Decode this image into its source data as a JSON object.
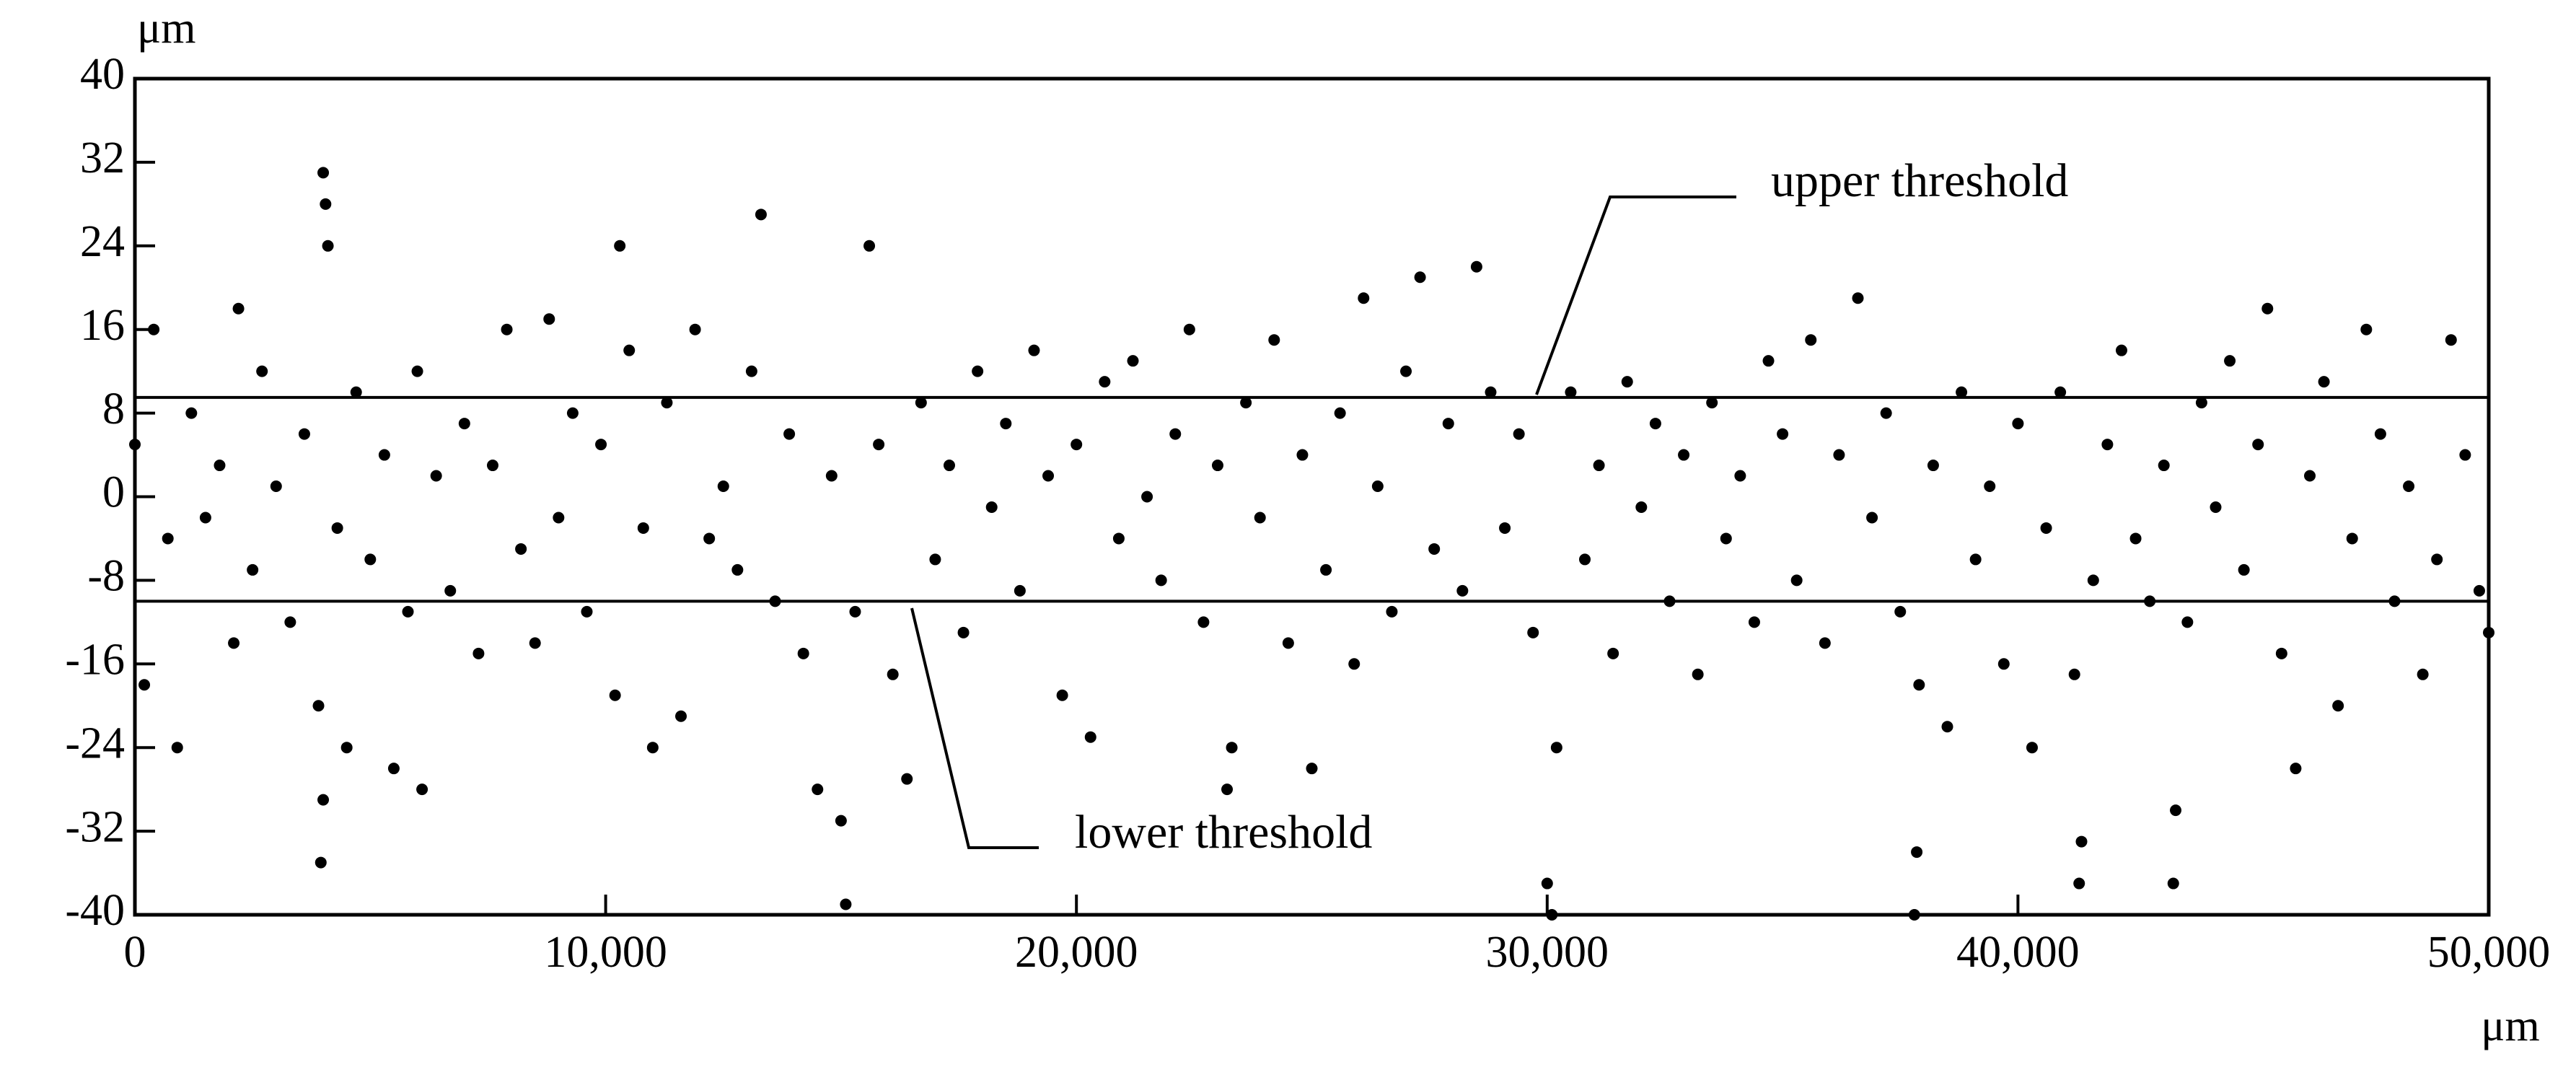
{
  "chart_data": {
    "type": "scatter",
    "x_label": "μm",
    "y_label": "μm",
    "xlim": [
      0,
      50000
    ],
    "ylim": [
      -40,
      40
    ],
    "xticks": [
      0,
      {
        "value": 10000,
        "label": "10,000"
      },
      {
        "value": 20000,
        "label": "20,000"
      },
      {
        "value": 30000,
        "label": "30,000"
      },
      {
        "value": 40000,
        "label": "40,000"
      },
      {
        "value": 50000,
        "label": "50,000"
      }
    ],
    "yticks": [
      -40,
      -32,
      -24,
      -16,
      -8,
      0,
      8,
      16,
      24,
      32,
      40
    ],
    "color": "#000000",
    "thresholds": [
      {
        "label": "upper threshold",
        "value": 9.5
      },
      {
        "label": "lower threshold",
        "value": -10
      }
    ],
    "x": [
      0,
      200,
      400,
      700,
      900,
      1200,
      1500,
      1800,
      2100,
      2200,
      2500,
      2700,
      3000,
      3300,
      3600,
      3900,
      4000,
      4050,
      4100,
      3950,
      4000,
      4300,
      4500,
      4700,
      5000,
      5300,
      5500,
      5800,
      6000,
      6100,
      6400,
      6700,
      7000,
      7300,
      7600,
      7900,
      8200,
      8500,
      8800,
      9000,
      9300,
      9600,
      9900,
      10200,
      10300,
      10500,
      10800,
      11000,
      11300,
      11600,
      11900,
      12200,
      12500,
      12800,
      13100,
      13300,
      13600,
      13900,
      14200,
      14500,
      14800,
      15000,
      15100,
      15300,
      15600,
      15800,
      16100,
      16400,
      16700,
      17000,
      17300,
      17600,
      17900,
      18200,
      18500,
      18800,
      19100,
      19400,
      19700,
      20000,
      20300,
      20600,
      20900,
      21200,
      21500,
      21800,
      22100,
      22400,
      22700,
      23000,
      23200,
      23300,
      23600,
      23900,
      24200,
      24500,
      24800,
      25000,
      25300,
      25600,
      25900,
      26100,
      26400,
      26700,
      27000,
      27300,
      27600,
      27900,
      28200,
      28500,
      28800,
      29100,
      29400,
      29700,
      30000,
      30100,
      30200,
      30500,
      30800,
      31100,
      31400,
      31700,
      32000,
      32300,
      32600,
      32900,
      33200,
      33500,
      33800,
      34100,
      34400,
      34700,
      35000,
      35300,
      35600,
      35900,
      36200,
      36600,
      36900,
      37200,
      37500,
      37800,
      37850,
      37900,
      38200,
      38500,
      38800,
      39100,
      39400,
      39700,
      40000,
      40300,
      40600,
      40900,
      41200,
      41300,
      41350,
      41600,
      41900,
      42200,
      42500,
      42800,
      43100,
      43300,
      43350,
      43600,
      43900,
      44200,
      44500,
      44800,
      45100,
      45300,
      45600,
      45900,
      46200,
      46500,
      46800,
      47100,
      47400,
      47700,
      48000,
      48300,
      48600,
      48900,
      49200,
      49500,
      49800,
      50000
    ],
    "values": [
      5,
      -18,
      16,
      -4,
      -24,
      8,
      -2,
      3,
      -14,
      18,
      -7,
      12,
      1,
      -12,
      6,
      -20,
      31,
      28,
      24,
      -35,
      -29,
      -3,
      -24,
      10,
      -6,
      4,
      -26,
      -11,
      12,
      -28,
      2,
      -9,
      7,
      -15,
      3,
      16,
      -5,
      -14,
      17,
      -2,
      8,
      -11,
      5,
      -19,
      24,
      14,
      -3,
      -24,
      9,
      -21,
      16,
      -4,
      1,
      -7,
      12,
      27,
      -10,
      6,
      -15,
      -28,
      2,
      -31,
      -39,
      -11,
      24,
      5,
      -17,
      -27,
      9,
      -6,
      3,
      -13,
      12,
      -1,
      7,
      -9,
      14,
      2,
      -19,
      5,
      -23,
      11,
      -4,
      13,
      0,
      -8,
      6,
      16,
      -12,
      3,
      -28,
      -24,
      9,
      -2,
      15,
      -14,
      4,
      -26,
      -7,
      8,
      -16,
      19,
      1,
      -11,
      12,
      21,
      -5,
      7,
      -9,
      22,
      10,
      -3,
      6,
      -13,
      -37,
      -40,
      -24,
      10,
      -6,
      3,
      -15,
      11,
      -1,
      7,
      -10,
      4,
      -17,
      9,
      -4,
      2,
      -12,
      13,
      6,
      -8,
      15,
      -14,
      4,
      19,
      -2,
      8,
      -11,
      -40,
      -34,
      -18,
      3,
      -22,
      10,
      -6,
      1,
      -16,
      7,
      -24,
      -3,
      10,
      -17,
      -37,
      -33,
      -8,
      5,
      14,
      -4,
      -10,
      3,
      -37,
      -30,
      -12,
      9,
      -1,
      13,
      -7,
      5,
      18,
      -15,
      -26,
      2,
      11,
      -20,
      -4,
      16,
      6,
      -10,
      1,
      -17,
      -6,
      15,
      4,
      -9,
      -13
    ]
  }
}
